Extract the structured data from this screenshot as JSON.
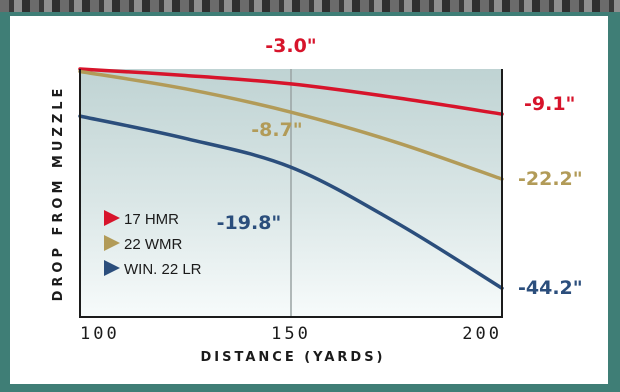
{
  "colors": {
    "frame": "#3f7e76",
    "hmr17": "#d7142b",
    "wmr22": "#b29b58",
    "lr22": "#2b4e7c",
    "grid": "#9aa3a3"
  },
  "chart_data": {
    "type": "line",
    "xlabel": "DISTANCE (YARDS)",
    "ylabel": "DROP FROM MUZZLE",
    "xlim": [
      100,
      200
    ],
    "ylim": [
      -50,
      0
    ],
    "x_ticks": [
      "100",
      "150",
      "200"
    ],
    "grid": "vertical line at 150",
    "legend": {
      "position": "lower-left"
    },
    "series": [
      {
        "name": "17 HMR",
        "color_key": "hmr17",
        "x": [
          100,
          125,
          150,
          175,
          200
        ],
        "y": [
          0,
          -1.3,
          -3.0,
          -5.8,
          -9.1
        ]
      },
      {
        "name": "22 WMR",
        "color_key": "wmr22",
        "x": [
          100,
          125,
          150,
          175,
          200
        ],
        "y": [
          -0.5,
          -4.0,
          -8.7,
          -14.8,
          -22.2
        ]
      },
      {
        "name": "WIN. 22 LR",
        "color_key": "lr22",
        "x": [
          100,
          125,
          150,
          175,
          200
        ],
        "y": [
          -9.5,
          -14.0,
          -19.8,
          -31.0,
          -44.2
        ]
      }
    ],
    "annotations": [
      {
        "series": 0,
        "x": 150,
        "text": "-3.0\""
      },
      {
        "series": 0,
        "x": 200,
        "text": "-9.1\""
      },
      {
        "series": 1,
        "x": 150,
        "text": "-8.7\""
      },
      {
        "series": 1,
        "x": 200,
        "text": "-22.2\""
      },
      {
        "series": 2,
        "x": 150,
        "text": "-19.8\""
      },
      {
        "series": 2,
        "x": 200,
        "text": "-44.2\""
      }
    ]
  }
}
